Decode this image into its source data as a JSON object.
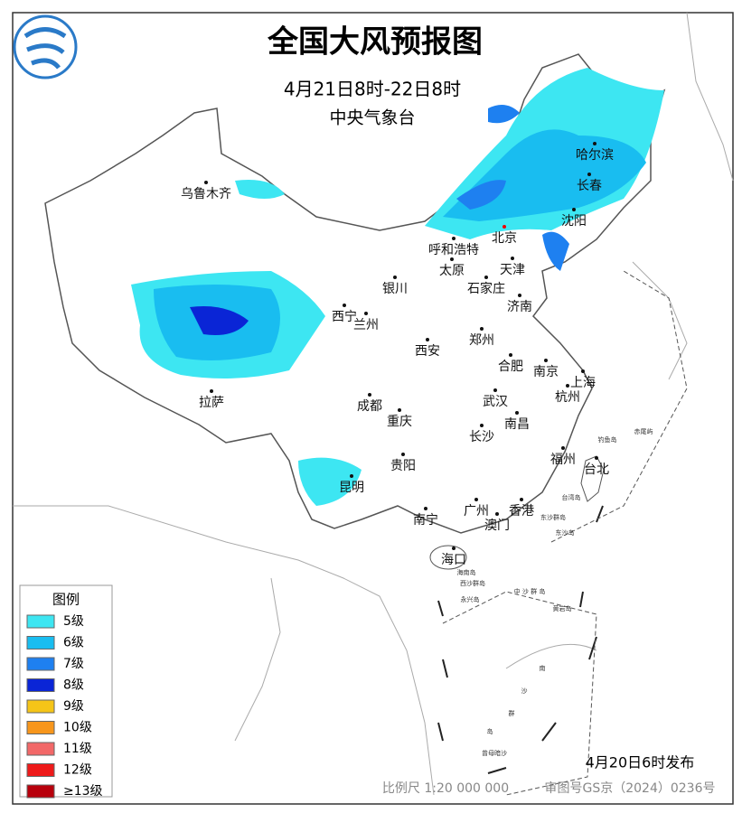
{
  "header": {
    "title": "全国大风预报图",
    "period": "4月21日8时-22日8时",
    "agency": "中央气象台"
  },
  "legend": {
    "title": "图例",
    "items": [
      {
        "label": "5级",
        "color": "#3de6f2"
      },
      {
        "label": "6级",
        "color": "#19bdf0"
      },
      {
        "label": "7级",
        "color": "#1e80f0"
      },
      {
        "label": "8级",
        "color": "#0a25d6"
      },
      {
        "label": "9级",
        "color": "#f5c518"
      },
      {
        "label": "10级",
        "color": "#f7961c"
      },
      {
        "label": "11级",
        "color": "#f26868"
      },
      {
        "label": "12级",
        "color": "#ee1a1a"
      },
      {
        "label": "≥13级",
        "color": "#b8000c"
      }
    ]
  },
  "cities": [
    "乌鲁木齐",
    "哈尔滨",
    "长春",
    "沈阳",
    "北京",
    "呼和浩特",
    "太原",
    "天津",
    "石家庄",
    "银川",
    "济南",
    "西宁",
    "兰州",
    "郑州",
    "西安",
    "合肥",
    "南京",
    "上海",
    "杭州",
    "拉萨",
    "成都",
    "武汉",
    "重庆",
    "南昌",
    "长沙",
    "福州",
    "台北",
    "贵阳",
    "昆明",
    "广州",
    "香港",
    "澳门",
    "南宁",
    "海口"
  ],
  "islands": [
    "钓鱼岛",
    "赤尾屿",
    "台湾岛",
    "东沙群岛",
    "东沙岛",
    "海南岛",
    "西沙群岛",
    "永兴岛",
    "中 沙 群 岛",
    "黄岩岛",
    "南",
    "沙",
    "群",
    "岛",
    "曾母暗沙"
  ],
  "footer": {
    "issued": "4月20日6时发布",
    "scale": "比例尺 1:20 000 000",
    "approval": "审图号GS京（2024）0236号"
  }
}
